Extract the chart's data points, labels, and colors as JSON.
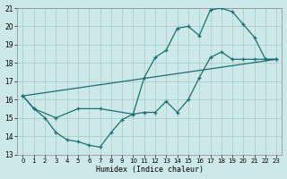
{
  "xlabel": "Humidex (Indice chaleur)",
  "xlim": [
    -0.5,
    23.5
  ],
  "ylim": [
    13,
    21
  ],
  "yticks": [
    13,
    14,
    15,
    16,
    17,
    18,
    19,
    20,
    21
  ],
  "xticks": [
    0,
    1,
    2,
    3,
    4,
    5,
    6,
    7,
    8,
    9,
    10,
    11,
    12,
    13,
    14,
    15,
    16,
    17,
    18,
    19,
    20,
    21,
    22,
    23
  ],
  "bg_color": "#cce8e8",
  "line_color": "#1a7070",
  "grid_color": "#aacfcf",
  "line1_x": [
    0,
    1,
    2,
    3,
    4,
    5,
    6,
    7,
    8,
    9,
    10,
    11,
    12,
    13,
    14,
    15,
    16,
    17,
    18,
    19,
    20,
    21,
    22,
    23
  ],
  "line1_y": [
    16.2,
    15.5,
    15.0,
    14.2,
    13.8,
    13.7,
    13.5,
    13.4,
    14.2,
    14.9,
    15.2,
    15.3,
    15.3,
    15.9,
    15.3,
    16.0,
    17.2,
    18.3,
    18.6,
    18.2,
    18.2,
    18.2,
    18.2,
    18.2
  ],
  "line2_x": [
    0,
    1,
    3,
    5,
    7,
    10,
    11,
    12,
    13,
    14,
    15,
    16,
    17,
    18,
    19,
    20,
    21,
    22,
    23
  ],
  "line2_y": [
    16.2,
    15.5,
    15.0,
    15.5,
    15.5,
    15.2,
    17.2,
    18.3,
    18.7,
    19.9,
    20.0,
    19.5,
    20.9,
    21.0,
    20.8,
    20.1,
    19.4,
    18.2,
    18.2
  ],
  "line3_x": [
    0,
    23
  ],
  "line3_y": [
    16.2,
    18.2
  ]
}
